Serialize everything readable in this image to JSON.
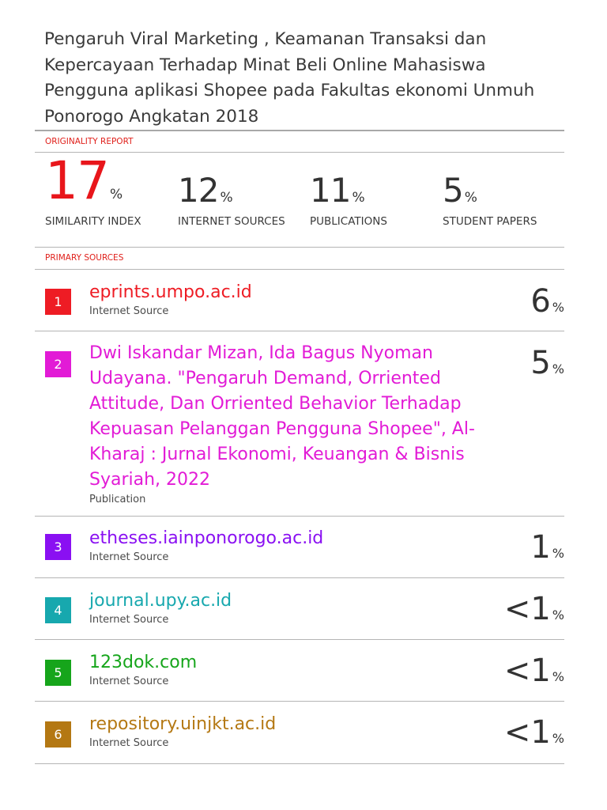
{
  "document": {
    "title": "Pengaruh Viral Marketing , Keamanan Transaksi dan Kepercayaan Terhadap Minat Beli Online Mahasiswa Pengguna aplikasi Shopee pada Fakultas ekonomi Unmuh Ponorogo Angkatan 2018"
  },
  "originality_report": {
    "label": "ORIGINALITY REPORT",
    "stats": [
      {
        "value": "17",
        "sign": "%",
        "label": "SIMILARITY INDEX"
      },
      {
        "value": "12",
        "sign": "%",
        "label": "INTERNET SOURCES"
      },
      {
        "value": "11",
        "sign": "%",
        "label": "PUBLICATIONS"
      },
      {
        "value": "5",
        "sign": "%",
        "label": "STUDENT PAPERS"
      }
    ]
  },
  "primary_sources": {
    "label": "PRIMARY SOURCES",
    "items": [
      {
        "rank": "1",
        "title": "eprints.umpo.ac.id",
        "type": "Internet Source",
        "percent": "6",
        "sign": "%",
        "color": "#ee1c24"
      },
      {
        "rank": "2",
        "title": "Dwi Iskandar Mizan, Ida Bagus Nyoman Udayana. \"Pengaruh Demand, Orriented Attitude, Dan Orriented Behavior Terhadap Kepuasan Pelanggan Pengguna Shopee\", Al-Kharaj : Jurnal Ekonomi, Keuangan & Bisnis Syariah, 2022",
        "type": "Publication",
        "percent": "5",
        "sign": "%",
        "color": "#e21bd6"
      },
      {
        "rank": "3",
        "title": "etheses.iainponorogo.ac.id",
        "type": "Internet Source",
        "percent": "1",
        "sign": "%",
        "color": "#8a10f2"
      },
      {
        "rank": "4",
        "title": "journal.upy.ac.id",
        "type": "Internet Source",
        "percent": "<1",
        "sign": "%",
        "color": "#17a8ae"
      },
      {
        "rank": "5",
        "title": "123dok.com",
        "type": "Internet Source",
        "percent": "<1",
        "sign": "%",
        "color": "#16a51b"
      },
      {
        "rank": "6",
        "title": "repository.uinjkt.ac.id",
        "type": "Internet Source",
        "percent": "<1",
        "sign": "%",
        "color": "#b47813"
      }
    ]
  }
}
